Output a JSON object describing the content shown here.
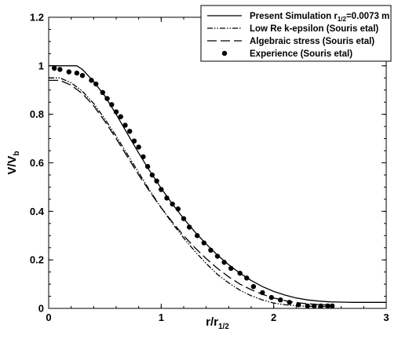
{
  "chart_data": {
    "type": "line",
    "xlabel_main": "r/r",
    "xlabel_sub": "1/2",
    "ylabel_main": "V/V",
    "ylabel_sub": "b",
    "xlim": [
      0,
      3
    ],
    "ylim": [
      0,
      1.2
    ],
    "xticks": [
      "0",
      "1",
      "2",
      "3"
    ],
    "yticks": [
      "0",
      "0.2",
      "0.4",
      "0.6",
      "0.8",
      "1",
      "1.2"
    ],
    "grid": false,
    "legend_position": "top-right",
    "legend": [
      {
        "pre": "Present Simulation r",
        "sub": "1/2",
        "post": "=0.0073 m"
      },
      {
        "pre": "Low Re k-epsilon (Souris etal)",
        "sub": "",
        "post": ""
      },
      {
        "pre": "Algebraic stress (Souris etal)",
        "sub": "",
        "post": ""
      },
      {
        "pre": "Experience (Souris etal)",
        "sub": "",
        "post": ""
      }
    ],
    "series": [
      {
        "style": "solid",
        "x": [
          0,
          0.1,
          0.2,
          0.25,
          0.3,
          0.4,
          0.5,
          0.6,
          0.7,
          0.8,
          0.9,
          1.0,
          1.1,
          1.2,
          1.3,
          1.4,
          1.5,
          1.6,
          1.7,
          1.8,
          1.9,
          2.0,
          2.1,
          2.2,
          2.3,
          2.4,
          2.5,
          2.6,
          2.7,
          2.8,
          2.9,
          3.0
        ],
        "y": [
          1.0,
          1.0,
          1.0,
          1.0,
          0.985,
          0.935,
          0.875,
          0.8,
          0.72,
          0.64,
          0.565,
          0.495,
          0.43,
          0.37,
          0.315,
          0.265,
          0.22,
          0.18,
          0.145,
          0.115,
          0.09,
          0.07,
          0.055,
          0.043,
          0.035,
          0.03,
          0.027,
          0.026,
          0.025,
          0.025,
          0.025,
          0.025
        ]
      },
      {
        "style": "dash-dot-dot",
        "x": [
          0,
          0.1,
          0.2,
          0.3,
          0.4,
          0.5,
          0.6,
          0.7,
          0.8,
          0.9,
          1.0,
          1.1,
          1.2,
          1.3,
          1.4,
          1.5,
          1.6,
          1.7,
          1.8,
          1.9,
          2.0,
          2.1,
          2.2,
          2.3,
          2.4,
          2.5
        ],
        "y": [
          0.95,
          0.95,
          0.93,
          0.895,
          0.845,
          0.78,
          0.71,
          0.635,
          0.56,
          0.485,
          0.415,
          0.35,
          0.29,
          0.235,
          0.185,
          0.14,
          0.105,
          0.075,
          0.052,
          0.035,
          0.022,
          0.015,
          0.011,
          0.009,
          0.008,
          0.008
        ]
      },
      {
        "style": "long-dash",
        "x": [
          0,
          0.1,
          0.2,
          0.3,
          0.4,
          0.5,
          0.6,
          0.7,
          0.8,
          0.9,
          1.0,
          1.1,
          1.2,
          1.3,
          1.4,
          1.5,
          1.6,
          1.7,
          1.8,
          1.9,
          2.0,
          2.1,
          2.2,
          2.3,
          2.4,
          2.5
        ],
        "y": [
          0.94,
          0.94,
          0.92,
          0.885,
          0.835,
          0.77,
          0.7,
          0.625,
          0.55,
          0.48,
          0.415,
          0.355,
          0.3,
          0.25,
          0.205,
          0.165,
          0.13,
          0.1,
          0.077,
          0.058,
          0.043,
          0.032,
          0.024,
          0.019,
          0.016,
          0.015
        ]
      },
      {
        "style": "markers",
        "x": [
          0.05,
          0.1,
          0.18,
          0.25,
          0.3,
          0.38,
          0.42,
          0.48,
          0.52,
          0.56,
          0.6,
          0.64,
          0.68,
          0.72,
          0.76,
          0.8,
          0.84,
          0.88,
          0.92,
          0.96,
          1.0,
          1.05,
          1.1,
          1.15,
          1.2,
          1.25,
          1.32,
          1.38,
          1.44,
          1.5,
          1.56,
          1.62,
          1.7,
          1.76,
          1.82,
          1.9,
          1.98,
          2.06,
          2.14,
          2.22,
          2.3,
          2.36,
          2.42,
          2.48,
          2.52
        ],
        "y": [
          0.99,
          0.985,
          0.975,
          0.97,
          0.96,
          0.94,
          0.925,
          0.89,
          0.865,
          0.84,
          0.81,
          0.79,
          0.755,
          0.73,
          0.69,
          0.665,
          0.625,
          0.585,
          0.55,
          0.525,
          0.49,
          0.455,
          0.43,
          0.41,
          0.37,
          0.335,
          0.3,
          0.27,
          0.24,
          0.215,
          0.19,
          0.165,
          0.145,
          0.125,
          0.09,
          0.065,
          0.045,
          0.035,
          0.025,
          0.015,
          0.01,
          0.01,
          0.01,
          0.01,
          0.01
        ]
      }
    ]
  }
}
